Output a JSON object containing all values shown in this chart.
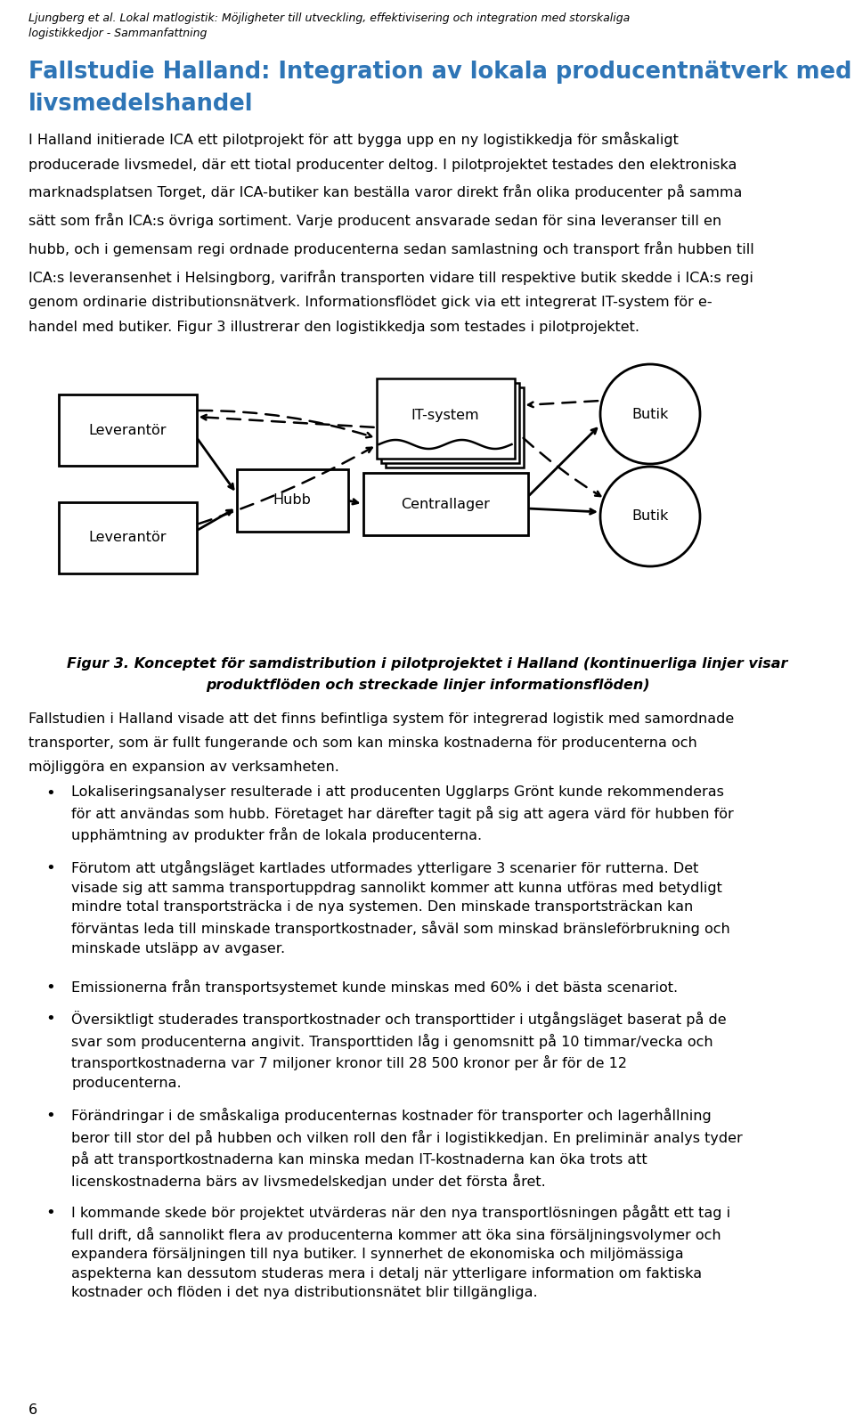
{
  "header_italic": "Ljungberg et al. Lokal matlogistik: Möjligheter till utveckling, effektivisering och integration med storskaliga\nlogistikkedjor - Sammanfattning",
  "title_line1": "Fallstudie Halland: Integration av lokala producentnätverk med storskalig",
  "title_line2": "livsmedelshandel",
  "intro_text": "I Halland initierade ICA ett pilotprojekt för att bygga upp en ny logistikkedja för småskaligt producerade livsmedel, där ett tiotal producenter deltog. I pilotprojektet testades den elektroniska marknadsplatsen Torget, där ICA-butiker kan beställa varor direkt från olika producenter på samma sätt som från ICA:s övriga sortiment. Varje producent ansvarade sedan för sina leveranser till en hubb, och i gemensam regi ordnade producenterna sedan samlastning och transport från hubben till ICA:s leveransenhet i Helsingborg, varifrån transporten vidare till respektive butik skedde i ICA:s regi genom ordinarie distributionsnätverk. Informationsflödet gick via ett integrerat IT-system för e-handel med butiker. Figur 3 illustrerar den logistikkedja som testades i pilotprojektet.",
  "fig_caption_line1": "Figur 3. Konceptet för samdistribution i pilotprojektet i Halland (kontinuerliga linjer visar",
  "fig_caption_line2": "produktflöden och streckade linjer informationsflöden)",
  "after_fig_text": "Fallstudien i Halland visade att det finns befintliga system för integrerad logistik med samordnade transporter, som är fullt fungerande och som kan minska kostnaderna för producenterna och möjliggöra en expansion av verksamheten.",
  "bullets": [
    "Lokaliseringsanalyser resulterade i att producenten Ugglarps Grönt kunde rekommenderas för att användas som hubb. Företaget har därefter tagit på sig att agera värd för hubben för upphämtning av produkter från de lokala producenterna.",
    "Förutom att utgångsläget kartlades utformades ytterligare 3 scenarier för rutterna. Det visade sig att samma transportuppdrag sannolikt kommer att kunna utföras med betydligt mindre total transportsträcka i de nya systemen. Den minskade transportsträckan kan förväntas leda till minskade transportkostnader, såväl som minskad bränsleförbrukning och minskade utsläpp av avgaser.",
    "Emissionerna från transportsystemet kunde minskas med 60% i det bästa scenariot.",
    "Översiktligt studerades transportkostnader och transporttider i utgångsläget baserat på de svar som producenterna angivit. Transporttiden låg i genomsnitt på 10 timmar/vecka och transportkostnaderna var 7 miljoner kronor till 28 500 kronor per år för de 12 producenterna.",
    "Förändringar i de småskaliga producenternas kostnader för transporter och lagerhållning beror till stor del på hubben och vilken roll den får i logistikkedjan. En preliminär analys tyder på att transportkostnaderna kan minska medan IT-kostnaderna kan öka trots att licenskostnaderna bärs av livsmedelskedjan under det första året.",
    "I kommande skede bör projektet utvärderas när den nya transportlösningen pågått ett tag i full drift, då sannolikt flera av producenterna kommer att öka sina försäljningsvolymer och expandera försäljningen till nya butiker. I synnerhet de ekonomiska och miljömässiga aspekterna kan dessutom studeras mera i detalj när ytterligare information om faktiska kostnader och flöden i det nya distributionsnätet blir tillgängliga."
  ],
  "page_number": "6",
  "bg_color": "#ffffff",
  "title_color": "#2E75B6"
}
